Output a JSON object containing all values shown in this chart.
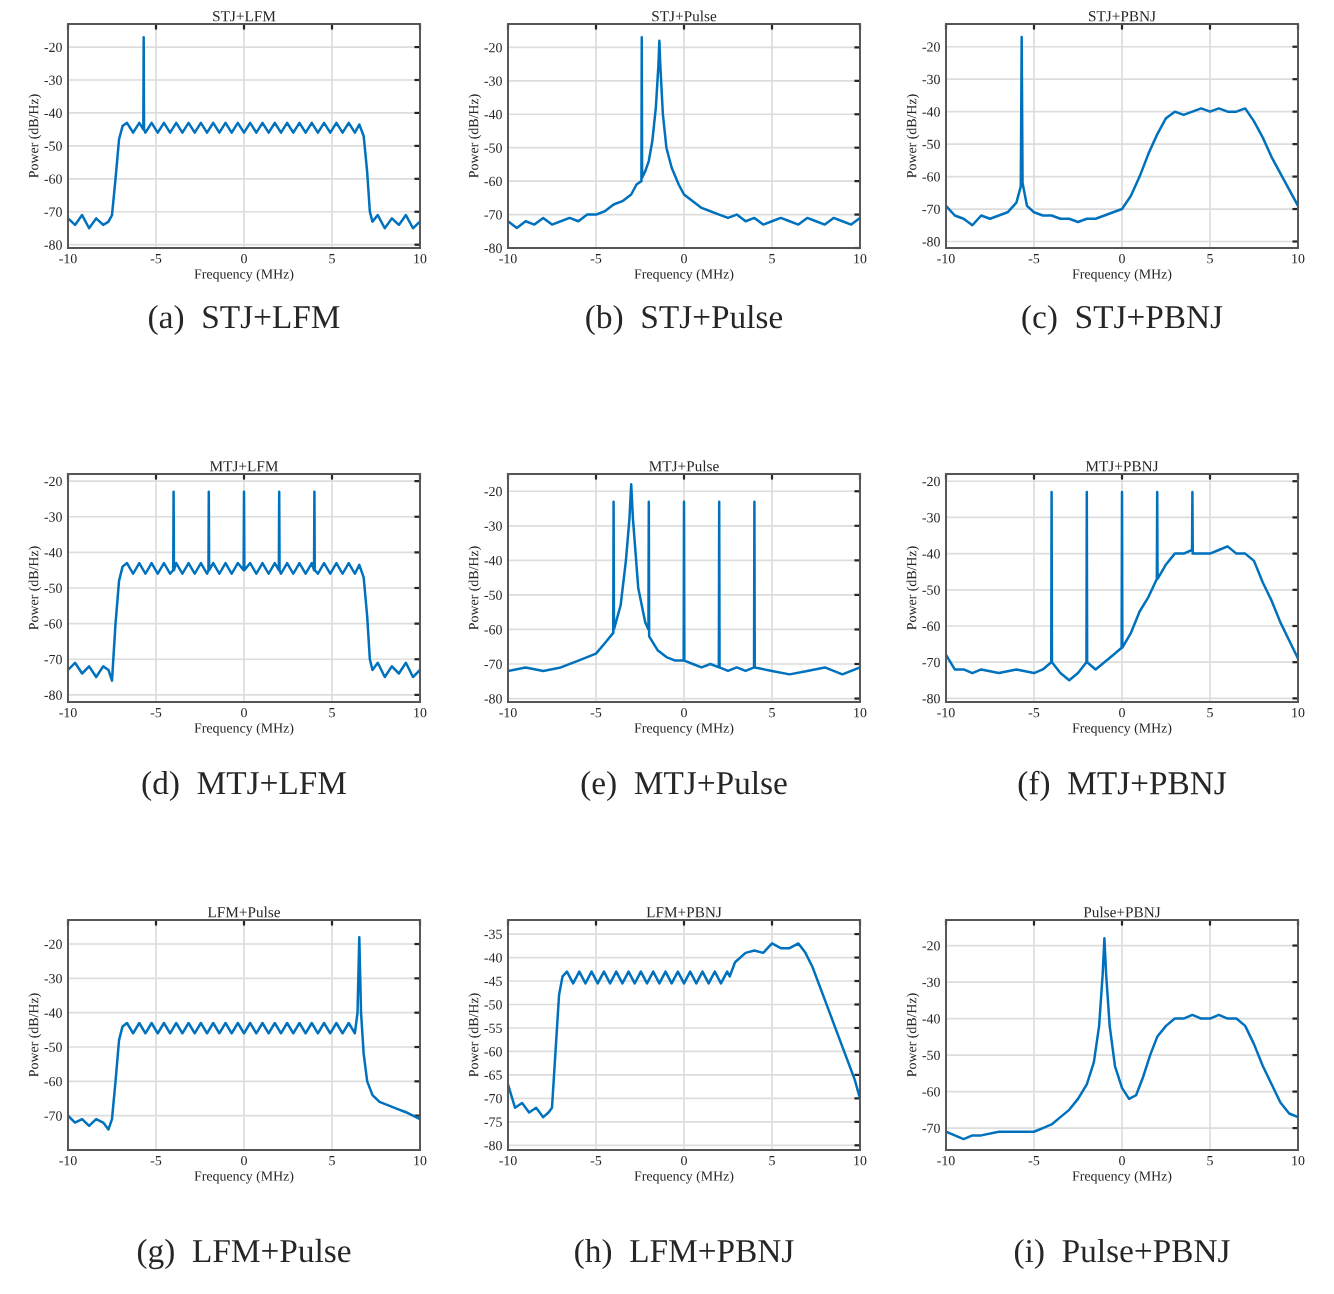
{
  "chart_data": [
    {
      "type": "line",
      "title": "STJ+LFM",
      "xlabel": "Frequency (MHz)",
      "ylabel": "Power (dB/Hz)",
      "annotations": [
        "(a)  STJ+LFM"
      ],
      "xlim": [
        -10,
        10
      ],
      "ylim": [
        -81,
        -13
      ],
      "xticks": [
        -10,
        -5,
        0,
        5,
        10
      ],
      "yticks": [
        -80,
        -70,
        -60,
        -50,
        -40,
        -30,
        -20
      ],
      "grid": true,
      "series": [
        {
          "color": "#0072bd",
          "x": [
            -10,
            -9.6,
            -9.2,
            -8.8,
            -8.4,
            -8,
            -7.7,
            -7.5,
            -7.3,
            -7.1,
            -6.9,
            -6.65,
            -6.3,
            -5.95,
            -5.72,
            -5.7,
            -5.68,
            -5.6,
            -5.25,
            -4.9,
            -4.55,
            -4.2,
            -3.85,
            -3.5,
            -3.15,
            -2.8,
            -2.45,
            -2.1,
            -1.75,
            -1.4,
            -1.05,
            -0.7,
            -0.35,
            0,
            0.35,
            0.7,
            1.05,
            1.4,
            1.75,
            2.1,
            2.45,
            2.8,
            3.15,
            3.5,
            3.85,
            4.2,
            4.55,
            4.9,
            5.25,
            5.6,
            5.95,
            6.3,
            6.55,
            6.8,
            7.0,
            7.15,
            7.3,
            7.6,
            8,
            8.4,
            8.8,
            9.2,
            9.6,
            10
          ],
          "values": [
            -72,
            -74,
            -71,
            -75,
            -72,
            -74,
            -73,
            -71,
            -60,
            -48,
            -44,
            -43,
            -46,
            -43,
            -45,
            -17,
            -45,
            -46,
            -43,
            -46,
            -43,
            -46,
            -43,
            -46,
            -43,
            -46,
            -43,
            -46,
            -43,
            -46,
            -43,
            -46,
            -43,
            -46,
            -43,
            -46,
            -43,
            -46,
            -43,
            -46,
            -43,
            -46,
            -43,
            -46,
            -43,
            -46,
            -43,
            -46,
            -43,
            -46,
            -43,
            -46,
            -43.5,
            -47,
            -58,
            -70,
            -73,
            -71,
            -75,
            -72,
            -74,
            -71,
            -75,
            -73
          ]
        }
      ]
    },
    {
      "type": "line",
      "title": "STJ+Pulse",
      "xlabel": "Frequency (MHz)",
      "ylabel": "Power (dB/Hz)",
      "annotations": [
        "(b)  STJ+Pulse"
      ],
      "xlim": [
        -10,
        10
      ],
      "ylim": [
        -80,
        -13
      ],
      "xticks": [
        -10,
        -5,
        0,
        5,
        10
      ],
      "yticks": [
        -80,
        -70,
        -60,
        -50,
        -40,
        -30,
        -20
      ],
      "grid": true,
      "series": [
        {
          "color": "#0072bd",
          "x": [
            -10,
            -9.5,
            -9,
            -8.5,
            -8,
            -7.5,
            -7,
            -6.5,
            -6,
            -5.5,
            -5,
            -4.5,
            -4,
            -3.5,
            -3,
            -2.7,
            -2.42,
            -2.4,
            -2.38,
            -2.2,
            -2,
            -1.8,
            -1.6,
            -1.45,
            -1.4,
            -1.35,
            -1.2,
            -1,
            -0.7,
            -0.3,
            0,
            0.5,
            1,
            1.5,
            2,
            2.5,
            3,
            3.5,
            4,
            4.5,
            5,
            5.5,
            6,
            6.5,
            7,
            7.5,
            8,
            8.5,
            9,
            9.5,
            10
          ],
          "values": [
            -72,
            -74,
            -72,
            -73,
            -71,
            -73,
            -72,
            -71,
            -72,
            -70,
            -70,
            -69,
            -67,
            -66,
            -64,
            -61,
            -60,
            -17,
            -59,
            -57,
            -54,
            -48,
            -38,
            -25,
            -18,
            -25,
            -40,
            -50,
            -56,
            -61,
            -64,
            -66,
            -68,
            -69,
            -70,
            -71,
            -70,
            -72,
            -71,
            -73,
            -72,
            -71,
            -72,
            -73,
            -71,
            -72,
            -73,
            -71,
            -72,
            -73,
            -71
          ]
        }
      ]
    },
    {
      "type": "line",
      "title": "STJ+PBNJ",
      "xlabel": "Frequency (MHz)",
      "ylabel": "Power (dB/Hz)",
      "annotations": [
        "(c)  STJ+PBNJ"
      ],
      "xlim": [
        -10,
        10
      ],
      "ylim": [
        -82,
        -13
      ],
      "xticks": [
        -10,
        -5,
        0,
        5,
        10
      ],
      "yticks": [
        -80,
        -70,
        -60,
        -50,
        -40,
        -30,
        -20
      ],
      "grid": true,
      "series": [
        {
          "color": "#0072bd",
          "x": [
            -10,
            -9.5,
            -9,
            -8.5,
            -8,
            -7.5,
            -7,
            -6.5,
            -6,
            -5.75,
            -5.7,
            -5.65,
            -5.4,
            -5,
            -4.5,
            -4,
            -3.5,
            -3,
            -2.5,
            -2,
            -1.5,
            -1,
            -0.5,
            0,
            0.5,
            1,
            1.5,
            2,
            2.5,
            3,
            3.5,
            4,
            4.5,
            5,
            5.5,
            6,
            6.5,
            7,
            7.5,
            8,
            8.5,
            9,
            9.5,
            10
          ],
          "values": [
            -69,
            -72,
            -73,
            -75,
            -72,
            -73,
            -72,
            -71,
            -68,
            -63,
            -17,
            -62,
            -69,
            -71,
            -72,
            -72,
            -73,
            -73,
            -74,
            -73,
            -73,
            -72,
            -71,
            -70,
            -66,
            -60,
            -53,
            -47,
            -42,
            -40,
            -41,
            -40,
            -39,
            -40,
            -39,
            -40,
            -40,
            -39,
            -43,
            -48,
            -54,
            -59,
            -64,
            -69
          ]
        }
      ]
    },
    {
      "type": "line",
      "title": "MTJ+LFM",
      "xlabel": "Frequency (MHz)",
      "ylabel": "Power (dB/Hz)",
      "annotations": [
        "(d)  MTJ+LFM"
      ],
      "xlim": [
        -10,
        10
      ],
      "ylim": [
        -82,
        -18
      ],
      "xticks": [
        -10,
        -5,
        0,
        5,
        10
      ],
      "yticks": [
        -80,
        -70,
        -60,
        -50,
        -40,
        -30,
        -20
      ],
      "grid": true,
      "series": [
        {
          "color": "#0072bd",
          "x": [
            -10,
            -9.6,
            -9.2,
            -8.8,
            -8.4,
            -8,
            -7.7,
            -7.5,
            -7.3,
            -7.1,
            -6.9,
            -6.65,
            -6.3,
            -5.95,
            -5.6,
            -5.25,
            -4.9,
            -4.55,
            -4.2,
            -4.02,
            -4,
            -3.98,
            -3.85,
            -3.5,
            -3.15,
            -2.8,
            -2.45,
            -2.1,
            -2.02,
            -2,
            -1.98,
            -1.75,
            -1.4,
            -1.05,
            -0.7,
            -0.35,
            -0.02,
            0,
            0.02,
            0.35,
            0.7,
            1.05,
            1.4,
            1.75,
            1.98,
            2,
            2.02,
            2.1,
            2.45,
            2.8,
            3.15,
            3.5,
            3.85,
            3.98,
            4,
            4.02,
            4.2,
            4.55,
            4.9,
            5.25,
            5.6,
            5.95,
            6.3,
            6.55,
            6.8,
            7.0,
            7.15,
            7.3,
            7.6,
            8,
            8.4,
            8.8,
            9.2,
            9.6,
            10
          ],
          "values": [
            -73,
            -71,
            -74,
            -72,
            -75,
            -72,
            -73,
            -76,
            -60,
            -48,
            -44,
            -43,
            -46,
            -43,
            -46,
            -43,
            -46,
            -43,
            -46,
            -45,
            -23,
            -45,
            -43,
            -46,
            -43,
            -46,
            -43,
            -46,
            -45,
            -23,
            -45,
            -43,
            -46,
            -43,
            -46,
            -43,
            -45,
            -23,
            -45,
            -43,
            -46,
            -43,
            -46,
            -43,
            -45,
            -23,
            -45,
            -46,
            -43,
            -46,
            -43,
            -46,
            -43,
            -45,
            -23,
            -45,
            -46,
            -43,
            -46,
            -43,
            -46,
            -43,
            -46,
            -43.5,
            -47,
            -58,
            -70,
            -73,
            -71,
            -75,
            -72,
            -74,
            -71,
            -75,
            -73
          ]
        }
      ]
    },
    {
      "type": "line",
      "title": "MTJ+Pulse",
      "xlabel": "Frequency (MHz)",
      "ylabel": "Power (dB/Hz)",
      "annotations": [
        "(e)  MTJ+Pulse"
      ],
      "xlim": [
        -10,
        10
      ],
      "ylim": [
        -81,
        -15
      ],
      "xticks": [
        -10,
        -5,
        0,
        5,
        10
      ],
      "yticks": [
        -80,
        -70,
        -60,
        -50,
        -40,
        -30,
        -20
      ],
      "grid": true,
      "series": [
        {
          "color": "#0072bd",
          "x": [
            -10,
            -9,
            -8,
            -7,
            -6,
            -5,
            -4.5,
            -4.02,
            -4,
            -3.98,
            -3.6,
            -3.3,
            -3.1,
            -3,
            -2.9,
            -2.6,
            -2.2,
            -2.02,
            -2,
            -1.98,
            -1.5,
            -1,
            -0.5,
            -0.02,
            0,
            0.02,
            0.5,
            1,
            1.5,
            1.98,
            2,
            2.02,
            2.5,
            3,
            3.5,
            3.98,
            4,
            4.02,
            5,
            6,
            7,
            8,
            9,
            10
          ],
          "values": [
            -72,
            -71,
            -72,
            -71,
            -69,
            -67,
            -64,
            -61,
            -23,
            -60,
            -53,
            -40,
            -28,
            -18,
            -28,
            -48,
            -58,
            -60,
            -23,
            -62,
            -66,
            -68,
            -69,
            -69,
            -23,
            -69,
            -70,
            -71,
            -70,
            -71,
            -23,
            -71,
            -72,
            -71,
            -72,
            -71,
            -23,
            -71,
            -72,
            -73,
            -72,
            -71,
            -73,
            -71
          ]
        }
      ]
    },
    {
      "type": "line",
      "title": "MTJ+PBNJ",
      "xlabel": "Frequency (MHz)",
      "ylabel": "Power (dB/Hz)",
      "annotations": [
        "(f)  MTJ+PBNJ"
      ],
      "xlim": [
        -10,
        10
      ],
      "ylim": [
        -81,
        -18
      ],
      "xticks": [
        -10,
        -5,
        0,
        5,
        10
      ],
      "yticks": [
        -80,
        -70,
        -60,
        -50,
        -40,
        -30,
        -20
      ],
      "grid": true,
      "series": [
        {
          "color": "#0072bd",
          "x": [
            -10,
            -9.5,
            -9,
            -8.5,
            -8,
            -7,
            -6,
            -5,
            -4.5,
            -4.02,
            -4,
            -3.98,
            -3.5,
            -3,
            -2.5,
            -2.02,
            -2,
            -1.98,
            -1.5,
            -1,
            -0.5,
            -0.02,
            0,
            0.02,
            0.5,
            1,
            1.5,
            1.98,
            2,
            2.02,
            2.5,
            3,
            3.5,
            3.98,
            4,
            4.02,
            4.5,
            5,
            5.5,
            6,
            6.5,
            7,
            7.5,
            8,
            8.5,
            9,
            9.5,
            10
          ],
          "values": [
            -68,
            -72,
            -72,
            -73,
            -72,
            -73,
            -72,
            -73,
            -72,
            -70,
            -23,
            -70,
            -73,
            -75,
            -73,
            -70,
            -23,
            -70,
            -72,
            -70,
            -68,
            -66,
            -23,
            -66,
            -62,
            -56,
            -52,
            -47,
            -23,
            -47,
            -43,
            -40,
            -40,
            -39,
            -23,
            -40,
            -40,
            -40,
            -39,
            -38,
            -40,
            -40,
            -42,
            -48,
            -53,
            -59,
            -64,
            -69
          ]
        }
      ]
    },
    {
      "type": "line",
      "title": "LFM+Pulse",
      "xlabel": "Frequency (MHz)",
      "ylabel": "Power (dB/Hz)",
      "annotations": [
        "(g)  LFM+Pulse"
      ],
      "xlim": [
        -10,
        10
      ],
      "ylim": [
        -80,
        -13
      ],
      "xticks": [
        -10,
        -5,
        0,
        5,
        10
      ],
      "yticks": [
        -70,
        -60,
        -50,
        -40,
        -30,
        -20
      ],
      "grid": true,
      "series": [
        {
          "color": "#0072bd",
          "x": [
            -10,
            -9.6,
            -9.2,
            -8.8,
            -8.4,
            -8,
            -7.7,
            -7.5,
            -7.3,
            -7.1,
            -6.9,
            -6.65,
            -6.3,
            -5.95,
            -5.6,
            -5.25,
            -4.9,
            -4.55,
            -4.2,
            -3.85,
            -3.5,
            -3.15,
            -2.8,
            -2.45,
            -2.1,
            -1.75,
            -1.4,
            -1.05,
            -0.7,
            -0.35,
            0,
            0.35,
            0.7,
            1.05,
            1.4,
            1.75,
            2.1,
            2.45,
            2.8,
            3.15,
            3.5,
            3.85,
            4.2,
            4.55,
            4.9,
            5.25,
            5.6,
            5.95,
            6.3,
            6.45,
            6.55,
            6.65,
            6.8,
            7.0,
            7.3,
            7.7,
            8.2,
            8.7,
            9.2,
            9.6,
            10
          ],
          "values": [
            -70,
            -72,
            -71,
            -73,
            -71,
            -72,
            -74,
            -71,
            -60,
            -48,
            -44,
            -43,
            -46,
            -43,
            -46,
            -43,
            -46,
            -43,
            -46,
            -43,
            -46,
            -43,
            -46,
            -43,
            -46,
            -43,
            -46,
            -43,
            -46,
            -43,
            -46,
            -43,
            -46,
            -43,
            -46,
            -43,
            -46,
            -43,
            -46,
            -43,
            -46,
            -43,
            -46,
            -43,
            -46,
            -43,
            -46,
            -43,
            -46,
            -40,
            -18,
            -40,
            -52,
            -60,
            -64,
            -66,
            -67,
            -68,
            -69,
            -70,
            -71
          ]
        }
      ]
    },
    {
      "type": "line",
      "title": "LFM+PBNJ",
      "xlabel": "Frequency (MHz)",
      "ylabel": "Power (dB/Hz)",
      "annotations": [
        "(h)  LFM+PBNJ"
      ],
      "xlim": [
        -10,
        10
      ],
      "ylim": [
        -81,
        -32
      ],
      "xticks": [
        -10,
        -5,
        0,
        5,
        10
      ],
      "yticks": [
        -80,
        -75,
        -70,
        -65,
        -60,
        -55,
        -50,
        -45,
        -40,
        -35
      ],
      "grid": true,
      "series": [
        {
          "color": "#0072bd",
          "x": [
            -10,
            -9.6,
            -9.2,
            -8.8,
            -8.4,
            -8,
            -7.7,
            -7.5,
            -7.3,
            -7.1,
            -6.9,
            -6.65,
            -6.3,
            -5.95,
            -5.6,
            -5.25,
            -4.9,
            -4.55,
            -4.2,
            -3.85,
            -3.5,
            -3.15,
            -2.8,
            -2.45,
            -2.1,
            -1.75,
            -1.4,
            -1.05,
            -0.7,
            -0.35,
            0,
            0.35,
            0.7,
            1.05,
            1.4,
            1.75,
            2.1,
            2.45,
            2.6,
            2.9,
            3.5,
            4,
            4.5,
            5,
            5.5,
            6,
            6.5,
            6.9,
            7.3,
            7.8,
            8.3,
            8.8,
            9.3,
            9.7,
            10
          ],
          "values": [
            -67,
            -72,
            -71,
            -73,
            -72,
            -74,
            -73,
            -72,
            -60,
            -48,
            -44,
            -43,
            -45.5,
            -43,
            -45.5,
            -43,
            -45.5,
            -43,
            -45.5,
            -43,
            -45.5,
            -43,
            -45.5,
            -43,
            -45.5,
            -43,
            -45.5,
            -43,
            -45.5,
            -43,
            -45.5,
            -43,
            -45.5,
            -43,
            -45.5,
            -43,
            -45.5,
            -43,
            -44,
            -41,
            -39,
            -38.5,
            -39,
            -37,
            -38,
            -38,
            -37,
            -39,
            -42,
            -47,
            -52,
            -57,
            -62,
            -66,
            -70
          ]
        }
      ]
    },
    {
      "type": "line",
      "title": "Pulse+PBNJ",
      "xlabel": "Frequency (MHz)",
      "ylabel": "Power (dB/Hz)",
      "annotations": [
        "(i)  Pulse+PBNJ"
      ],
      "xlim": [
        -10,
        10
      ],
      "ylim": [
        -76,
        -13
      ],
      "xticks": [
        -10,
        -5,
        0,
        5,
        10
      ],
      "yticks": [
        -70,
        -60,
        -50,
        -40,
        -30,
        -20
      ],
      "grid": true,
      "series": [
        {
          "color": "#0072bd",
          "x": [
            -10,
            -9.5,
            -9,
            -8.5,
            -8,
            -7,
            -6,
            -5,
            -4.5,
            -4,
            -3.5,
            -3,
            -2.5,
            -2,
            -1.6,
            -1.3,
            -1.1,
            -1,
            -0.9,
            -0.7,
            -0.4,
            0,
            0.4,
            0.8,
            1.2,
            1.6,
            2,
            2.5,
            3,
            3.5,
            4,
            4.5,
            5,
            5.5,
            6,
            6.5,
            7,
            7.5,
            8,
            8.5,
            9,
            9.5,
            10
          ],
          "values": [
            -71,
            -72,
            -73,
            -72,
            -72,
            -71,
            -71,
            -71,
            -70,
            -69,
            -67,
            -65,
            -62,
            -58,
            -52,
            -42,
            -28,
            -18,
            -28,
            -42,
            -53,
            -59,
            -62,
            -61,
            -56,
            -50,
            -45,
            -42,
            -40,
            -40,
            -39,
            -40,
            -40,
            -39,
            -40,
            -40,
            -42,
            -47,
            -53,
            -58,
            -63,
            -66,
            -67
          ]
        }
      ]
    }
  ]
}
